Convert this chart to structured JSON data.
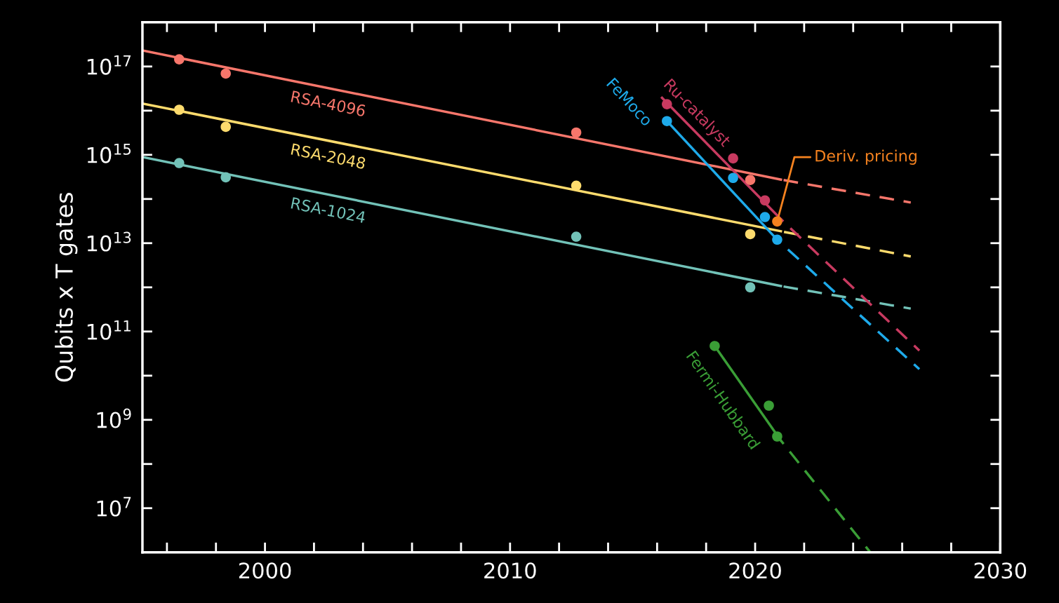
{
  "chart_data": {
    "type": "line",
    "ylabel": "Qubits x T gates",
    "log": "y",
    "grid": false,
    "marker": "none",
    "xlim": [
      1995,
      2030
    ],
    "ylim": [
      1000000.0,
      1e+18
    ],
    "xticks": [
      {
        "value": 1996,
        "label": null
      },
      {
        "value": 1998,
        "label": null
      },
      2000,
      {
        "value": 2002,
        "label": null
      },
      {
        "value": 2004,
        "label": null
      },
      {
        "value": 2006,
        "label": null
      },
      {
        "value": 2008,
        "label": null
      },
      2010,
      {
        "value": 2012,
        "label": null
      },
      {
        "value": 2014,
        "label": null
      },
      {
        "value": 2016,
        "label": null
      },
      {
        "value": 2018,
        "label": null
      },
      2020,
      {
        "value": 2022,
        "label": null
      },
      {
        "value": 2024,
        "label": null
      },
      {
        "value": 2026,
        "label": null
      },
      {
        "value": 2028,
        "label": null
      },
      2030
    ],
    "yticks": [
      {
        "value": 10000000.0,
        "label": "10$^{7}$"
      },
      {
        "value": 100000000.0,
        "label": null
      },
      {
        "value": 1000000000.0,
        "label": "10$^{9}$"
      },
      {
        "value": 10000000000.0,
        "label": null
      },
      {
        "value": 100000000000.0,
        "label": "10$^{11}$"
      },
      {
        "value": 1000000000000.0,
        "label": null
      },
      {
        "value": 10000000000000.0,
        "label": "10$^{13}$"
      },
      {
        "value": 100000000000000.0,
        "label": null
      },
      {
        "value": 1000000000000000.0,
        "label": "10$^{15}$"
      },
      {
        "value": 1e+16,
        "label": null
      },
      {
        "value": 1e+17,
        "label": "10$^{17}$"
      }
    ],
    "series": [
      {
        "name": "RSA-4096",
        "type": "line",
        "line_style": "solid",
        "color": "#f7766b",
        "x": [
          1995,
          2021.05
        ],
        "values": [
          2.3e+17,
          275000000000000.0
        ]
      },
      {
        "type": "line",
        "line_style": "dashed",
        "color": "#f7766b",
        "x": [
          2021.05,
          2026.35
        ],
        "values": [
          275000000000000.0,
          83000000000000.0
        ]
      },
      {
        "type": "scatter",
        "marker": "circle",
        "color": "#f7766b",
        "x": [
          1996.5,
          1998.4,
          2012.7,
          2019.8
        ],
        "values": [
          1.45e+17,
          6.9e+16,
          3200000000000000.0,
          270000000000000.0
        ]
      },
      {
        "name": "RSA-2048",
        "type": "line",
        "line_style": "solid",
        "color": "#fddb6d",
        "x": [
          1995,
          2021.05
        ],
        "values": [
          1.45e+16,
          18600000000000.0
        ]
      },
      {
        "type": "line",
        "line_style": "dashed",
        "color": "#fddb6d",
        "x": [
          2021.05,
          2026.35
        ],
        "values": [
          18600000000000.0,
          5000000000000.0
        ]
      },
      {
        "type": "scatter",
        "marker": "circle",
        "color": "#fddb6d",
        "x": [
          1996.5,
          1998.4,
          2012.7,
          2019.8
        ],
        "values": [
          1.05e+16,
          4300000000000000.0,
          200000000000000.0,
          16000000000000.0
        ]
      },
      {
        "name": "RSA-1024",
        "type": "line",
        "line_style": "solid",
        "color": "#72c2b8",
        "x": [
          1995,
          2021.05
        ],
        "values": [
          890000000000000.0,
          1070000000000.0
        ]
      },
      {
        "type": "line",
        "line_style": "dashed",
        "color": "#72c2b8",
        "x": [
          2021.05,
          2026.35
        ],
        "values": [
          1070000000000.0,
          330000000000.0
        ]
      },
      {
        "type": "scatter",
        "marker": "circle",
        "color": "#72c2b8",
        "x": [
          1996.5,
          1998.4,
          2012.7,
          2019.8
        ],
        "values": [
          650000000000000.0,
          310000000000000.0,
          14000000000000.0,
          1000000000000.0
        ]
      },
      {
        "name": "Ru-catalyst",
        "type": "line",
        "line_style": "solid",
        "color": "#c83a60",
        "x": [
          2016.2,
          2021.05
        ],
        "values": [
          1.95e+16,
          35000000000000.0
        ]
      },
      {
        "type": "line",
        "line_style": "dashed",
        "color": "#c83a60",
        "x": [
          2021.05,
          2026.7
        ],
        "values": [
          35000000000000.0,
          37000000000.0
        ]
      },
      {
        "type": "scatter",
        "marker": "circle",
        "color": "#c83a60",
        "x": [
          2016.4,
          2019.1,
          2020.4
        ],
        "values": [
          1.4e+16,
          830000000000000.0,
          93000000000000.0
        ]
      },
      {
        "name": "FeMoco",
        "type": "line",
        "line_style": "solid",
        "color": "#1eaaea",
        "x": [
          2016.4,
          2020.9
        ],
        "values": [
          5800000000000000.0,
          12000000000000.0
        ]
      },
      {
        "type": "line",
        "line_style": "dashed",
        "color": "#1eaaea",
        "x": [
          2020.9,
          2026.7
        ],
        "values": [
          12000000000000.0,
          14000000000.0
        ]
      },
      {
        "type": "scatter",
        "marker": "circle",
        "color": "#1eaaea",
        "x": [
          2016.4,
          2019.1,
          2020.4,
          2020.9
        ],
        "values": [
          5800000000000000.0,
          300000000000000.0,
          39000000000000.0,
          12000000000000.0
        ]
      },
      {
        "name": "Deriv. pricing",
        "type": "scatter",
        "marker": "circle",
        "color": "#f5821f",
        "x": [
          2020.9
        ],
        "values": [
          31000000000000.0
        ]
      },
      {
        "name": "Fermi-Hubbard",
        "type": "line",
        "line_style": "solid",
        "color": "#3a9e36",
        "x": [
          2018.35,
          2021.05
        ],
        "values": [
          47000000000.0,
          340000000.0
        ]
      },
      {
        "type": "line",
        "line_style": "dashed",
        "color": "#3a9e36",
        "x": [
          2021.05,
          2024.7
        ],
        "values": [
          340000000.0,
          1000000.0
        ]
      },
      {
        "type": "scatter",
        "marker": "circle",
        "color": "#3a9e36",
        "x": [
          2018.35,
          2020.56,
          2020.9
        ],
        "values": [
          47000000000.0,
          2100000000.0,
          420000000.0
        ]
      }
    ]
  }
}
